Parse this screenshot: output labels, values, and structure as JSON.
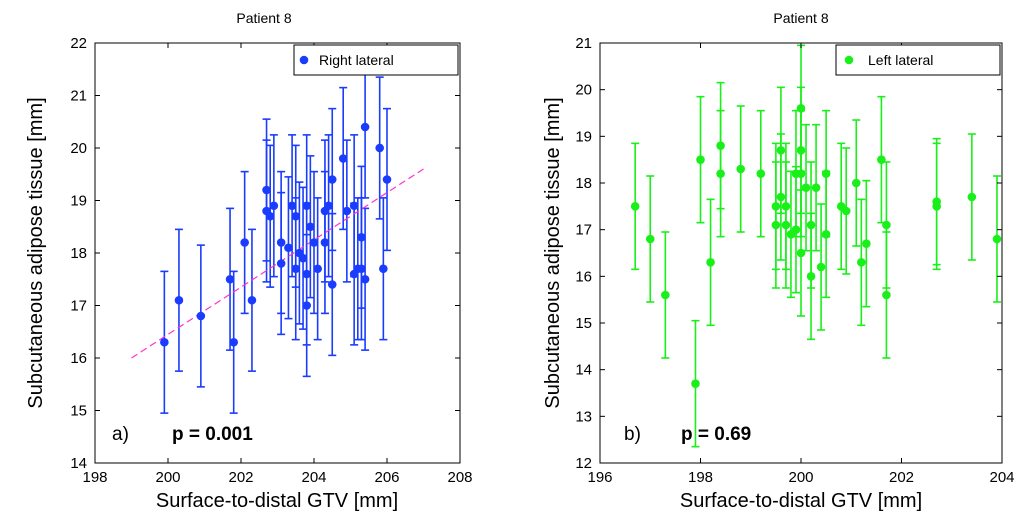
{
  "chart_data": [
    {
      "type": "scatter",
      "title": "Patient 8",
      "xlabel": "Surface-to-distal GTV [mm]",
      "ylabel": "Subcutaneous adipose tissue [mm]",
      "xlim": [
        198,
        208
      ],
      "ylim": [
        14,
        22
      ],
      "xticks": [
        198,
        200,
        202,
        204,
        206,
        208
      ],
      "yticks": [
        14,
        15,
        16,
        17,
        18,
        19,
        20,
        21,
        22
      ],
      "grid": false,
      "legend_position": "top-right",
      "series": [
        {
          "name": "Right lateral",
          "color": "#1a3cff",
          "error_bar": 1.35,
          "points": [
            [
              199.9,
              16.3
            ],
            [
              200.3,
              17.1
            ],
            [
              200.9,
              16.8
            ],
            [
              201.7,
              17.5
            ],
            [
              201.8,
              16.3
            ],
            [
              202.1,
              18.2
            ],
            [
              202.3,
              17.1
            ],
            [
              202.7,
              19.2
            ],
            [
              202.7,
              18.8
            ],
            [
              202.8,
              18.7
            ],
            [
              202.9,
              18.9
            ],
            [
              203.1,
              17.8
            ],
            [
              203.1,
              18.2
            ],
            [
              203.3,
              18.1
            ],
            [
              203.4,
              18.9
            ],
            [
              203.5,
              17.7
            ],
            [
              203.5,
              18.7
            ],
            [
              203.6,
              18.0
            ],
            [
              203.7,
              17.9
            ],
            [
              203.8,
              17.6
            ],
            [
              203.8,
              17.0
            ],
            [
              203.8,
              18.9
            ],
            [
              203.9,
              18.5
            ],
            [
              204.0,
              18.2
            ],
            [
              204.1,
              17.7
            ],
            [
              204.3,
              18.2
            ],
            [
              204.3,
              18.8
            ],
            [
              204.4,
              18.9
            ],
            [
              204.5,
              17.4
            ],
            [
              204.5,
              19.4
            ],
            [
              204.8,
              19.8
            ],
            [
              204.9,
              18.8
            ],
            [
              205.1,
              18.9
            ],
            [
              205.1,
              17.6
            ],
            [
              205.2,
              17.7
            ],
            [
              205.3,
              18.3
            ],
            [
              205.3,
              17.7
            ],
            [
              205.4,
              20.4
            ],
            [
              205.4,
              17.5
            ],
            [
              205.8,
              20.0
            ],
            [
              205.9,
              17.7
            ],
            [
              206.0,
              19.4
            ]
          ]
        },
        {
          "name": "fit",
          "color": "#ff33cc",
          "style": "dashed",
          "points": [
            [
              199.0,
              16.0
            ],
            [
              207.0,
              19.6
            ]
          ]
        }
      ],
      "annotations": [
        {
          "label": "a)",
          "value": "p = 0.001"
        }
      ]
    },
    {
      "type": "scatter",
      "title": "Patient 8",
      "xlabel": "Surface-to-distal GTV [mm]",
      "ylabel": "Subcutaneous adipose tissue [mm]",
      "xlim": [
        196,
        204
      ],
      "ylim": [
        12,
        21
      ],
      "xticks": [
        196,
        198,
        200,
        202,
        204
      ],
      "yticks": [
        12,
        13,
        14,
        15,
        16,
        17,
        18,
        19,
        20,
        21
      ],
      "grid": false,
      "legend_position": "top-right",
      "series": [
        {
          "name": "Left lateral",
          "color": "#19f019",
          "error_bar": 1.35,
          "points": [
            [
              196.7,
              17.5
            ],
            [
              197.0,
              16.8
            ],
            [
              197.3,
              15.6
            ],
            [
              197.9,
              13.7
            ],
            [
              198.0,
              18.5
            ],
            [
              198.2,
              16.3
            ],
            [
              198.4,
              18.8
            ],
            [
              198.4,
              18.2
            ],
            [
              198.8,
              18.3
            ],
            [
              199.2,
              18.2
            ],
            [
              199.5,
              17.1
            ],
            [
              199.5,
              17.5
            ],
            [
              199.6,
              18.7
            ],
            [
              199.6,
              17.7
            ],
            [
              199.7,
              17.5
            ],
            [
              199.7,
              17.1
            ],
            [
              199.8,
              16.9
            ],
            [
              199.9,
              18.2
            ],
            [
              199.9,
              17.0
            ],
            [
              200.0,
              19.6
            ],
            [
              200.0,
              18.7
            ],
            [
              200.0,
              18.2
            ],
            [
              200.0,
              16.5
            ],
            [
              200.1,
              17.9
            ],
            [
              200.2,
              17.1
            ],
            [
              200.2,
              16.0
            ],
            [
              200.3,
              17.9
            ],
            [
              200.4,
              16.2
            ],
            [
              200.5,
              16.9
            ],
            [
              200.5,
              18.2
            ],
            [
              200.8,
              17.5
            ],
            [
              200.9,
              17.4
            ],
            [
              201.1,
              18.0
            ],
            [
              201.2,
              16.3
            ],
            [
              201.3,
              16.7
            ],
            [
              201.6,
              18.5
            ],
            [
              201.7,
              17.1
            ],
            [
              201.7,
              15.6
            ],
            [
              202.7,
              17.5
            ],
            [
              202.7,
              17.6
            ],
            [
              203.4,
              17.7
            ],
            [
              203.9,
              16.8
            ]
          ]
        }
      ],
      "annotations": [
        {
          "label": "b)",
          "value": "p = 0.69"
        }
      ]
    }
  ]
}
